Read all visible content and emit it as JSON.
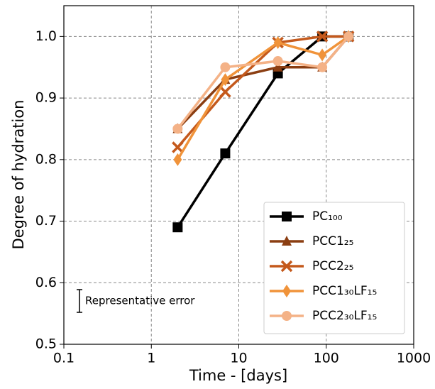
{
  "chart_data": {
    "type": "line",
    "x_label": "Time - [days]",
    "y_label": "Degree of hydration",
    "x": [
      2,
      7,
      28,
      90,
      180
    ],
    "xscale": "log",
    "xlim": [
      0.1,
      1000
    ],
    "xticks": [
      0.1,
      1,
      10,
      100,
      1000
    ],
    "ylim": [
      0.5,
      1.05
    ],
    "yticks": [
      0.5,
      0.6,
      0.7,
      0.8,
      0.9,
      {
        "value": 1,
        "label": "1.0"
      }
    ],
    "grid": true,
    "legend": "lower right",
    "annotation": "Representative error",
    "series": [
      {
        "name": "PC₁₀₀",
        "color": "#000000",
        "marker": "square",
        "values": [
          0.69,
          0.81,
          0.94,
          1.0,
          1.0
        ]
      },
      {
        "name": "PCC1₂₅",
        "color": "#8b3e12",
        "marker": "triangle",
        "values": [
          0.85,
          0.93,
          0.95,
          0.95,
          1.0
        ]
      },
      {
        "name": "PCC2₂₅",
        "color": "#c4591c",
        "marker": "x",
        "values": [
          0.82,
          0.91,
          0.99,
          1.0,
          1.0
        ]
      },
      {
        "name": "PCC1₃₀LF₁₅",
        "color": "#f0933a",
        "marker": "diamond",
        "values": [
          0.8,
          0.93,
          0.99,
          0.97,
          1.0
        ]
      },
      {
        "name": "PCC2₃₀LF₁₅",
        "color": "#f4b287",
        "marker": "circle",
        "values": [
          0.85,
          0.95,
          0.96,
          0.95,
          1.0
        ]
      }
    ]
  }
}
